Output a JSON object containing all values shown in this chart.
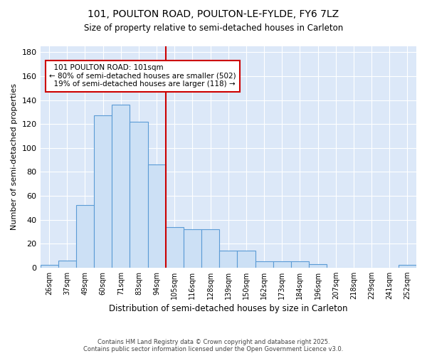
{
  "title1": "101, POULTON ROAD, POULTON-LE-FYLDE, FY6 7LZ",
  "title2": "Size of property relative to semi-detached houses in Carleton",
  "xlabel": "Distribution of semi-detached houses by size in Carleton",
  "ylabel": "Number of semi-detached properties",
  "bin_labels": [
    "26sqm",
    "37sqm",
    "49sqm",
    "60sqm",
    "71sqm",
    "83sqm",
    "94sqm",
    "105sqm",
    "116sqm",
    "128sqm",
    "139sqm",
    "150sqm",
    "162sqm",
    "173sqm",
    "184sqm",
    "196sqm",
    "207sqm",
    "218sqm",
    "229sqm",
    "241sqm",
    "252sqm"
  ],
  "bar_values": [
    2,
    6,
    52,
    127,
    136,
    122,
    86,
    34,
    32,
    32,
    14,
    14,
    5,
    5,
    5,
    3,
    0,
    0,
    0,
    0,
    2
  ],
  "bar_color": "#cce0f5",
  "bar_edge_color": "#5b9bd5",
  "property_line_x": 5,
  "property_line_label": "101 POULTON ROAD: 101sqm",
  "smaller_pct": 80,
  "smaller_count": 502,
  "larger_pct": 19,
  "larger_count": 118,
  "annotation_box_color": "#ffffff",
  "annotation_box_edge": "#cc0000",
  "vline_color": "#cc0000",
  "bg_color": "#dce8f8",
  "grid_color": "#ffffff",
  "ylim": [
    0,
    185
  ],
  "yticks": [
    0,
    20,
    40,
    60,
    80,
    100,
    120,
    140,
    160,
    180
  ],
  "footer1": "Contains HM Land Registry data © Crown copyright and database right 2025.",
  "footer2": "Contains public sector information licensed under the Open Government Licence v3.0."
}
